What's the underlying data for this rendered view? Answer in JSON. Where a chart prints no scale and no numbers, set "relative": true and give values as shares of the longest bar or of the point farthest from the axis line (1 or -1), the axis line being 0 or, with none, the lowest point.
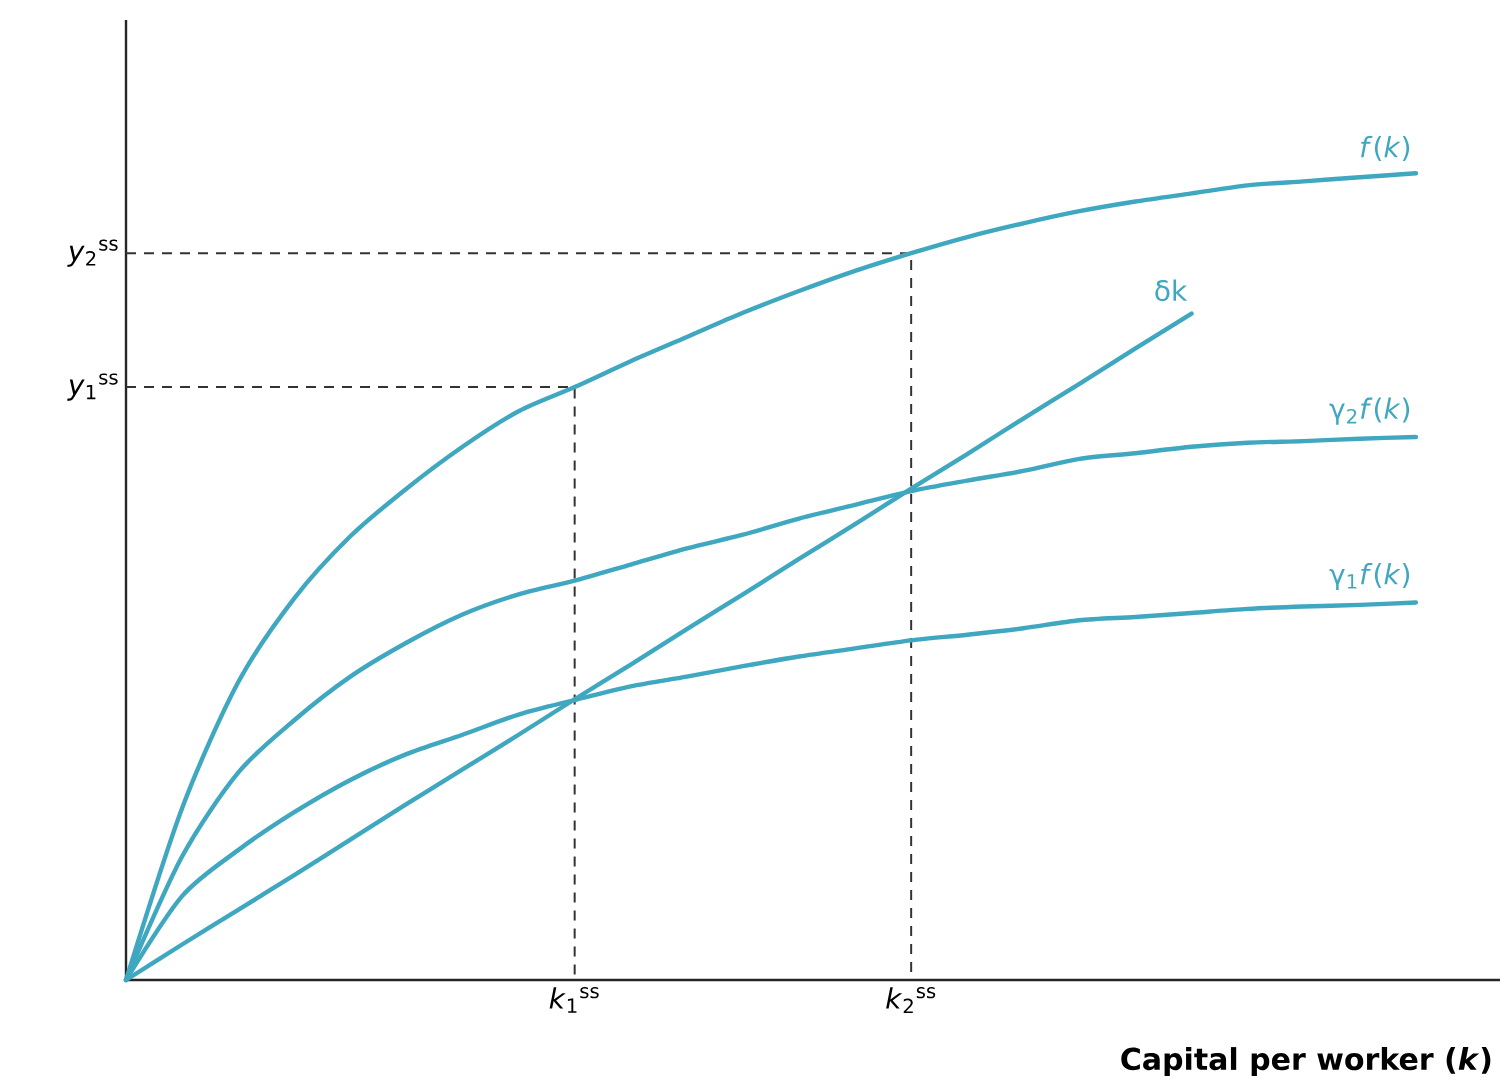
{
  "chart_data": {
    "type": "line",
    "relative": true,
    "xlabel": "Capital per worker (*k*)",
    "categories": [
      null,
      null,
      null,
      null,
      null,
      null,
      null,
      null,
      "*k*$_{1}$$^{ss}$",
      null,
      null,
      null,
      null,
      null,
      "*k*$_{2}$$^{ss}$",
      null,
      null,
      null,
      null,
      null,
      null,
      null,
      null,
      null
    ],
    "series": [
      {
        "name": "*f*(*k*)",
        "color": "#3fa7c0",
        "values": [
          0,
          0.213,
          0.369,
          0.473,
          0.55,
          0.609,
          0.661,
          0.705,
          0.735,
          0.767,
          0.797,
          0.827,
          0.854,
          0.879,
          0.901,
          0.921,
          0.938,
          0.953,
          0.965,
          0.975,
          0.985,
          0.99,
          0.995,
          1
        ]
      },
      {
        "name": "δk",
        "color": "#3fa7c0",
        "values": [
          0,
          0.044,
          0.087,
          0.13,
          0.174,
          0.218,
          0.261,
          0.304,
          0.348,
          0.391,
          0.435,
          0.478,
          0.522,
          0.565,
          0.609,
          0.652,
          0.696,
          0.739,
          0.783,
          0.826,
          null,
          null,
          null,
          null
        ]
      },
      {
        "name": "γ$_{2}$*f*(*k*)",
        "color": "#3fa7c0",
        "values": [
          0,
          0.153,
          0.257,
          0.322,
          0.376,
          0.418,
          0.453,
          0.478,
          0.495,
          0.515,
          0.535,
          0.552,
          0.572,
          0.589,
          0.606,
          0.619,
          0.631,
          0.646,
          0.653,
          0.661,
          0.666,
          0.668,
          0.671,
          0.673
        ]
      },
      {
        "name": "γ$_{1}$*f*(*k*)",
        "color": "#3fa7c0",
        "values": [
          0,
          0.104,
          0.161,
          0.208,
          0.248,
          0.28,
          0.304,
          0.329,
          0.347,
          0.364,
          0.376,
          0.389,
          0.401,
          0.411,
          0.421,
          0.428,
          0.436,
          0.446,
          0.45,
          0.455,
          0.46,
          0.463,
          0.465,
          0.468
        ]
      }
    ],
    "ref_lines": [
      {
        "axis": "y",
        "value": 0.735,
        "label": "*y*$_{1}$$^{ss}$",
        "color": "#333333",
        "line_style": "dashed"
      },
      {
        "axis": "y",
        "value": 0.901,
        "label": "*y*$_{2}$$^{ss}$",
        "color": "#333333",
        "line_style": "dashed"
      }
    ]
  }
}
